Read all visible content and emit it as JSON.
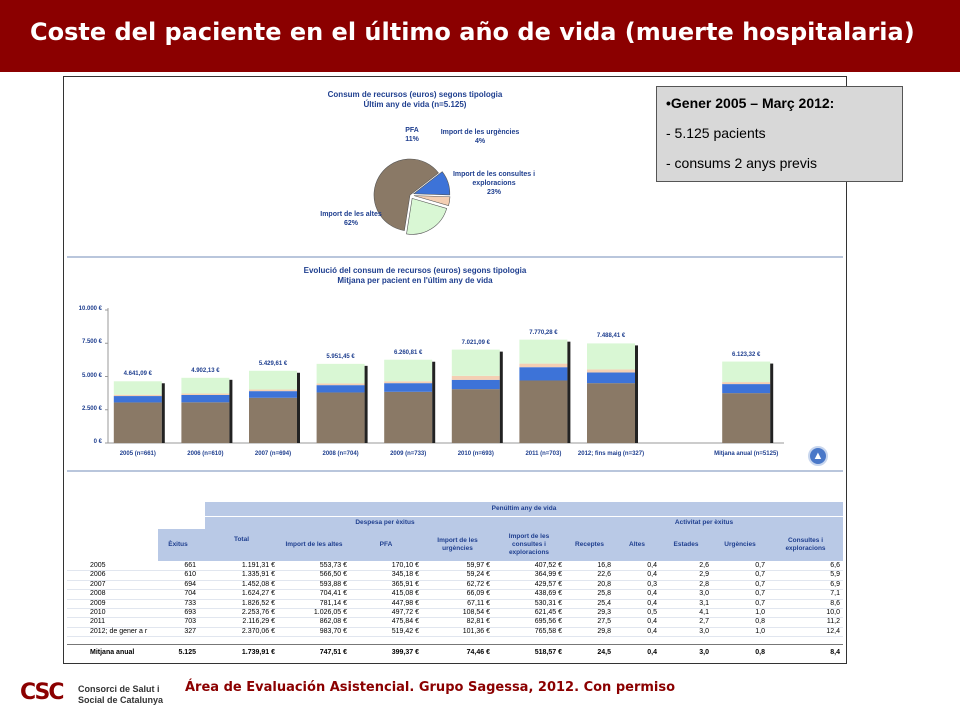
{
  "header": {
    "title": "Coste del paciente en el último año de vida (muerte hospitalaria)"
  },
  "info_box": {
    "line1": "•Gener 2005 – Març 2012:",
    "line2": "- 5.125 pacients",
    "line3": "- consums 2 anys previs"
  },
  "footer": {
    "text": "Área de Evaluación Asistencial. Grupo Sagessa, 2012. Con permiso"
  },
  "logo": {
    "mark": "CSC",
    "line1": "Consorci de Salut i",
    "line2": "Social de Catalunya"
  },
  "colors": {
    "brand": "#8b0000",
    "altes": "#8a7966",
    "pfa": "#3d73d8",
    "urgencies": "#f4cfb3",
    "consultes": "#d9f7d4",
    "title_blue": "#1f3f8f"
  },
  "chart_data": [
    {
      "type": "pie",
      "title": "Consum de recursos (euros) segons tipologia",
      "subtitle": "Últim any de vida (n=5.125)",
      "slices": [
        {
          "name": "Import de les altes",
          "value": 62,
          "label": "62%",
          "color": "#8a7966"
        },
        {
          "name": "PFA",
          "value": 11,
          "label": "11%",
          "color": "#3d73d8"
        },
        {
          "name": "Import de les urgències",
          "value": 4,
          "label": "4%",
          "color": "#f4cfb3"
        },
        {
          "name": "Import de les consultes i exploracions",
          "value": 23,
          "label": "23%",
          "color": "#d9f7d4"
        }
      ]
    },
    {
      "type": "bar",
      "stacked": true,
      "title": "Evolució del consum de recursos (euros) segons tipologia",
      "subtitle": "Mitjana per pacient en l'últim any de vida",
      "categories": [
        "2005 (n=661)",
        "2006 (n=610)",
        "2007 (n=694)",
        "2008 (n=704)",
        "2009 (n=733)",
        "2010 (n=693)",
        "2011 (n=703)",
        "2012; fins maig (n=327)",
        "Mitjana anual (n=5125)"
      ],
      "totals": [
        "4.641,09 €",
        "4.902,13 €",
        "5.429,61 €",
        "5.951,45 €",
        "6.260,81 €",
        "7.021,09 €",
        "7.770,28 €",
        "7.488,41 €",
        "6.123,32 €"
      ],
      "series": [
        {
          "values": [
            3050,
            3060,
            3400,
            3800,
            3850,
            4050,
            4700,
            4500,
            3750
          ],
          "color": "#8a7966"
        },
        {
          "values": [
            480,
            550,
            500,
            550,
            650,
            700,
            1000,
            800,
            680
          ],
          "color": "#3d73d8"
        },
        {
          "values": [
            100,
            110,
            120,
            130,
            140,
            300,
            270,
            230,
            150
          ],
          "color": "#f4cfb3"
        },
        {
          "values": [
            1011,
            1182,
            1410,
            1471,
            1621,
            1971,
            1800,
            1958,
            1543
          ],
          "color": "#d9f7d4"
        }
      ],
      "yticks": [
        "10.000 €",
        "7.500 €",
        "5.000 €",
        "2.500 €",
        "0 €"
      ],
      "ylim": [
        0,
        10000
      ],
      "grid": false
    },
    {
      "type": "table",
      "title": "Penúltim any de vida",
      "group_headers": [
        "Despesa per èxitus",
        "Activitat per èxitus"
      ],
      "columns": [
        "",
        "Èxitus",
        "Total",
        "Import de les altes",
        "PFA",
        "Import de les urgències",
        "Import de les consultes i exploracions",
        "Receptes",
        "Altes",
        "Estades",
        "Urgències",
        "Consultes i exploracions"
      ],
      "rows": [
        [
          "2005",
          "661",
          "1.191,31 €",
          "553,73 €",
          "170,10 €",
          "59,97 €",
          "407,52 €",
          "16,8",
          "0,4",
          "2,6",
          "0,7",
          "6,6"
        ],
        [
          "2006",
          "610",
          "1.335,91 €",
          "566,50 €",
          "345,18 €",
          "59,24 €",
          "364,99 €",
          "22,6",
          "0,4",
          "2,9",
          "0,7",
          "5,9"
        ],
        [
          "2007",
          "694",
          "1.452,08 €",
          "593,88 €",
          "365,91 €",
          "62,72 €",
          "429,57 €",
          "20,8",
          "0,3",
          "2,8",
          "0,7",
          "6,9"
        ],
        [
          "2008",
          "704",
          "1.624,27 €",
          "704,41 €",
          "415,08 €",
          "66,09 €",
          "438,69 €",
          "25,8",
          "0,4",
          "3,0",
          "0,7",
          "7,1"
        ],
        [
          "2009",
          "733",
          "1.826,52 €",
          "781,14 €",
          "447,98 €",
          "67,11 €",
          "530,31 €",
          "25,4",
          "0,4",
          "3,1",
          "0,7",
          "8,6"
        ],
        [
          "2010",
          "693",
          "2.253,76 €",
          "1.026,05 €",
          "497,72 €",
          "108,54 €",
          "621,45 €",
          "29,3",
          "0,5",
          "4,1",
          "1,0",
          "10,0"
        ],
        [
          "2011",
          "703",
          "2.116,29 €",
          "862,08 €",
          "475,84 €",
          "82,81 €",
          "695,56 €",
          "27,5",
          "0,4",
          "2,7",
          "0,8",
          "11,2"
        ],
        [
          "2012; de gener a r",
          "327",
          "2.370,06 €",
          "983,70 €",
          "519,42 €",
          "101,36 €",
          "765,58 €",
          "29,8",
          "0,4",
          "3,0",
          "1,0",
          "12,4"
        ]
      ],
      "summary": [
        "Mitjana anual",
        "5.125",
        "1.739,91 €",
        "747,51 €",
        "399,37 €",
        "74,46 €",
        "518,57 €",
        "24,5",
        "0,4",
        "3,0",
        "0,8",
        "8,4"
      ]
    }
  ]
}
